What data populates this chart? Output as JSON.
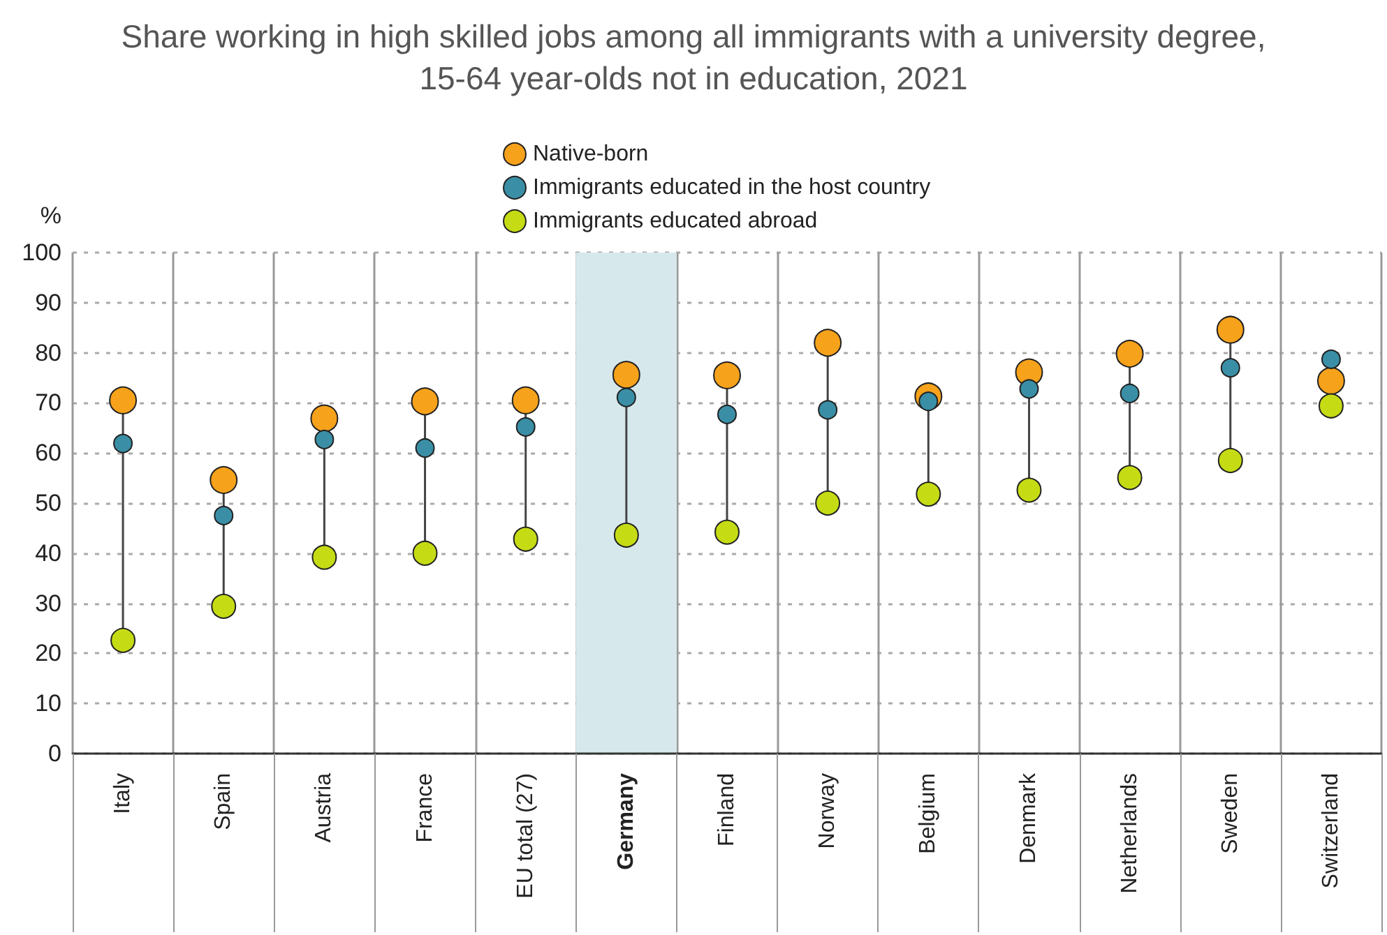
{
  "chart_data": {
    "type": "scatter",
    "title": "Share working in high skilled jobs among all immigrants with a university degree,\n15-64 year-olds not in education, 2021",
    "ylabel": "%",
    "categories": [
      "Italy",
      "Spain",
      "Austria",
      "France",
      "EU total (27)",
      "Germany",
      "Finland",
      "Norway",
      "Belgium",
      "Denmark",
      "Netherlands",
      "Sweden",
      "Switzerland"
    ],
    "series": [
      {
        "name": "Native-born",
        "color": "#f7a21b",
        "values": [
          70.5,
          54.6,
          66.9,
          70.3,
          70.5,
          75.6,
          75.5,
          82.0,
          71.3,
          76.1,
          79.8,
          84.6,
          74.4
        ]
      },
      {
        "name": "Immigrants educated in the host country",
        "color": "#3a8fa6",
        "values": [
          61.9,
          47.5,
          62.7,
          61.0,
          65.2,
          71.1,
          67.7,
          68.6,
          70.3,
          72.8,
          71.9,
          77.0,
          78.7
        ]
      },
      {
        "name": "Immigrants educated abroad",
        "color": "#c5dc14",
        "values": [
          22.6,
          29.4,
          39.2,
          40.0,
          42.8,
          43.6,
          44.2,
          50.0,
          51.8,
          52.6,
          55.1,
          58.5,
          69.4
        ]
      }
    ],
    "ylim": [
      0,
      100
    ],
    "yticks": [
      0,
      10,
      20,
      30,
      40,
      50,
      60,
      70,
      80,
      90,
      100
    ],
    "bands": [
      {
        "axis": "x",
        "from": "Germany",
        "to": "Germany",
        "color": "#d6e8ec"
      }
    ],
    "grid": true,
    "legend": "top",
    "marker": "circle"
  }
}
